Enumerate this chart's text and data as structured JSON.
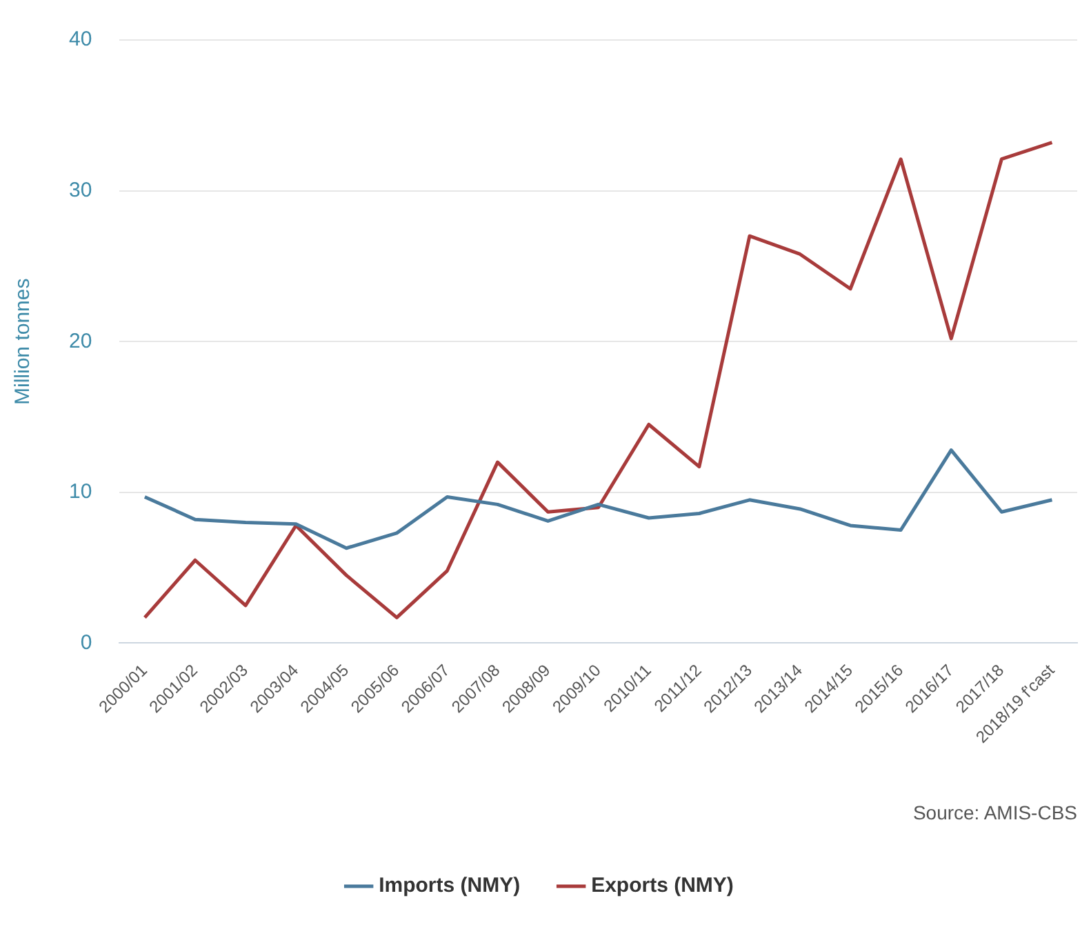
{
  "chart_data": {
    "type": "line",
    "ylabel": "Million tonnes",
    "annotations": [
      "Source: AMIS-CBS"
    ],
    "categories": [
      "2000/01",
      "2001/02",
      "2002/03",
      "2003/04",
      "2004/05",
      "2005/06",
      "2006/07",
      "2007/08",
      "2008/09",
      "2009/10",
      "2010/11",
      "2011/12",
      "2012/13",
      "2013/14",
      "2014/15",
      "2015/16",
      "2016/17",
      "2017/18",
      "2018/19 f'cast"
    ],
    "series": [
      {
        "name": "Imports (NMY)",
        "color": "#4a7a9c",
        "values": [
          9.7,
          8.2,
          8.0,
          7.9,
          6.3,
          7.3,
          9.7,
          9.2,
          8.1,
          9.2,
          8.3,
          8.6,
          9.5,
          8.9,
          7.8,
          7.5,
          12.8,
          8.7,
          9.5
        ]
      },
      {
        "name": "Exports (NMY)",
        "color": "#a83b3b",
        "values": [
          1.7,
          5.5,
          2.5,
          7.8,
          4.5,
          1.7,
          4.8,
          12.0,
          8.7,
          9.0,
          14.5,
          11.7,
          27.0,
          25.8,
          23.5,
          32.1,
          20.2,
          32.1,
          33.2
        ]
      }
    ],
    "ylim": [
      0,
      40
    ],
    "yticks": [
      0,
      10,
      20,
      30,
      40
    ],
    "grid": "y",
    "legend": "bottom",
    "marker": "none",
    "line_style": "solid"
  }
}
